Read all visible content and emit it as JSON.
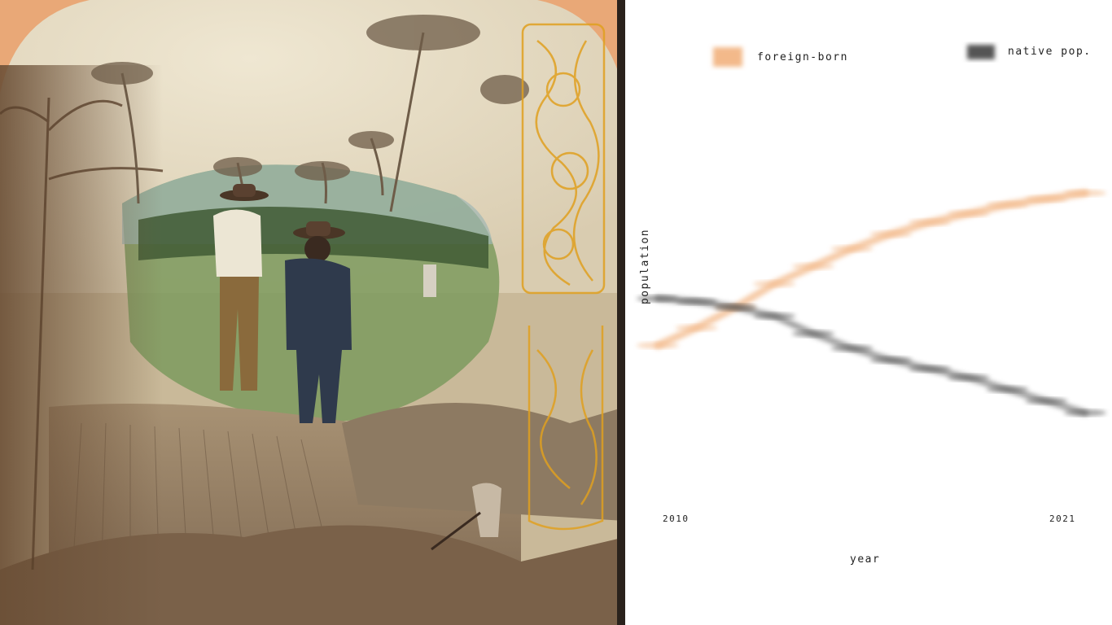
{
  "photo": {
    "description_icon": "stereograph-farm-photo",
    "palette": {
      "sepia": "#a88e6e",
      "field": "#6f8a52",
      "stamp": "#e0a020",
      "corner": "#e9a877"
    }
  },
  "chart_data": {
    "type": "line",
    "x": [
      2010,
      2011,
      2012,
      2013,
      2014,
      2015,
      2016,
      2017,
      2018,
      2019,
      2020,
      2021
    ],
    "xlim": [
      2010,
      2021
    ],
    "xticks": [
      "2010",
      "2021"
    ],
    "xlabel": "year",
    "ylabel": "population",
    "ylim": [
      0,
      100
    ],
    "grid": false,
    "legend_position": "top",
    "series": [
      {
        "name": "foreign-born",
        "color": "#f3b98a",
        "values": [
          46,
          52,
          59,
          67,
          73,
          79,
          84,
          88,
          91,
          94,
          96,
          98
        ]
      },
      {
        "name": "native pop.",
        "color": "#555555",
        "values": [
          62,
          61,
          59,
          56,
          50,
          45,
          41,
          38,
          35,
          31,
          27,
          23
        ]
      }
    ]
  }
}
